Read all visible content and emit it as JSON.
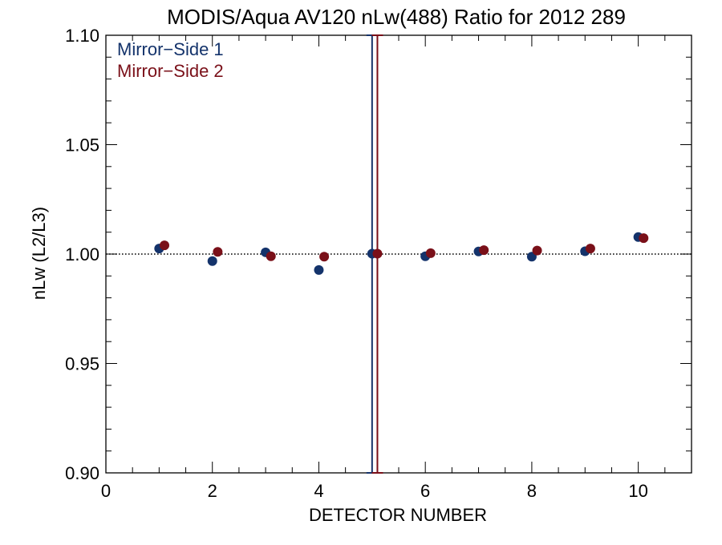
{
  "chart_data": {
    "type": "scatter",
    "title": "MODIS/Aqua AV120 nLw(488) Ratio for 2012 289",
    "xlabel": "DETECTOR NUMBER",
    "ylabel": "nLw (L2/L3)",
    "xlim": [
      0,
      11
    ],
    "ylim": [
      0.9,
      1.1
    ],
    "xticks": [
      0,
      2,
      4,
      6,
      8,
      10
    ],
    "xtick_labels": [
      "0",
      "2",
      "4",
      "6",
      "8",
      "10"
    ],
    "yticks": [
      0.9,
      0.95,
      1.0,
      1.05,
      1.1
    ],
    "ytick_labels": [
      "0.90",
      "0.95",
      "1.00",
      "1.05",
      "1.10"
    ],
    "x_minor_step": 0.5,
    "y_minor_step": 0.01,
    "reference_line": 1.0,
    "legend_position": "top-left",
    "series": [
      {
        "name": "Mirror−Side 1",
        "color": "#14336b",
        "x": [
          1,
          2,
          3,
          4,
          5,
          6,
          7,
          8,
          9,
          10
        ],
        "y": [
          1.0025,
          0.9968,
          1.0008,
          0.9927,
          1.0002,
          0.999,
          1.0012,
          0.9988,
          1.0013,
          1.0078
        ]
      },
      {
        "name": "Mirror−Side 2",
        "color": "#7a1019",
        "x": [
          1.1,
          2.1,
          3.1,
          4.1,
          5.1,
          6.1,
          7.1,
          8.1,
          9.1,
          10.1
        ],
        "y": [
          1.004,
          1.001,
          0.999,
          0.9988,
          1.0002,
          1.0004,
          1.0018,
          1.0016,
          1.0025,
          1.0073
        ]
      }
    ],
    "error_bars": [
      {
        "series": 0,
        "x": 5,
        "low": 0.9,
        "high": 1.1
      },
      {
        "series": 1,
        "x": 5.1,
        "low": 0.9,
        "high": 1.1
      }
    ]
  }
}
